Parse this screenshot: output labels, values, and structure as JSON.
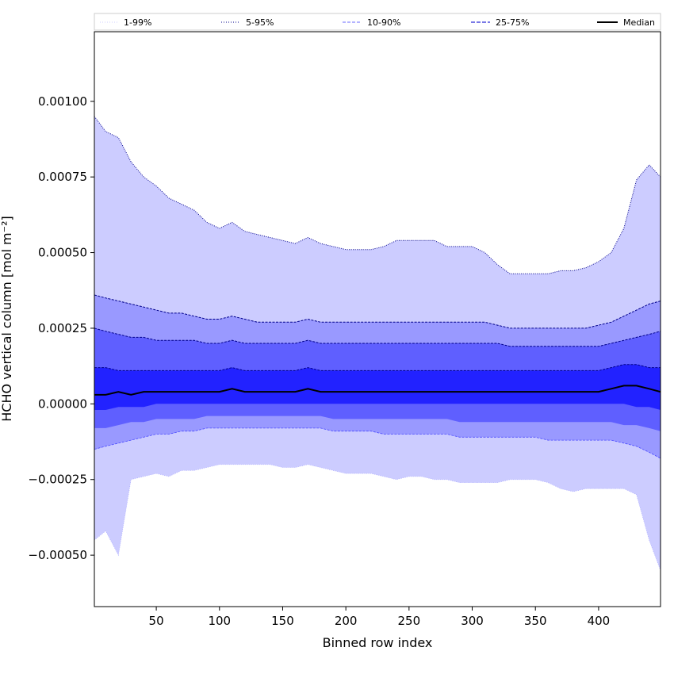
{
  "chart_data": {
    "type": "area",
    "title": "",
    "xlabel": "Binned row index",
    "ylabel": "HCHO vertical column [mol m⁻²]",
    "xlim": [
      1,
      449
    ],
    "ylim": [
      -0.00067,
      0.00123
    ],
    "x_ticks": [
      {
        "value": 50,
        "label": "50"
      },
      {
        "value": 100,
        "label": "100"
      },
      {
        "value": 150,
        "label": "150"
      },
      {
        "value": 200,
        "label": "200"
      },
      {
        "value": 250,
        "label": "250"
      },
      {
        "value": 300,
        "label": "300"
      },
      {
        "value": 350,
        "label": "350"
      },
      {
        "value": 400,
        "label": "400"
      }
    ],
    "y_ticks": [
      {
        "value": -0.0005,
        "label": "−0.00050"
      },
      {
        "value": -0.00025,
        "label": "−0.00025"
      },
      {
        "value": 0.0,
        "label": "0.00000"
      },
      {
        "value": 0.00025,
        "label": "0.00025"
      },
      {
        "value": 0.0005,
        "label": "0.00050"
      },
      {
        "value": 0.00075,
        "label": "0.00075"
      },
      {
        "value": 0.001,
        "label": "0.00100"
      }
    ],
    "legend": {
      "placement": "top",
      "entries": [
        {
          "label": "1-99%",
          "style": "dotted",
          "color": "#ccccff"
        },
        {
          "label": "5-95%",
          "style": "dotted",
          "color": "#00008b"
        },
        {
          "label": "10-90%",
          "style": "dashed",
          "color": "#6a6aff"
        },
        {
          "label": "25-75%",
          "style": "dashed",
          "color": "#2b2bd6"
        },
        {
          "label": "Median",
          "style": "solid",
          "color": "#000000"
        }
      ]
    },
    "band_colors": {
      "p1_99": "#ccccff",
      "p5_95": "#9999ff",
      "p10_90": "#5f5fff",
      "p25_75": "#2222ff",
      "median": "#000000"
    },
    "x": [
      1,
      10,
      20,
      30,
      40,
      50,
      60,
      70,
      80,
      90,
      100,
      110,
      120,
      130,
      140,
      150,
      160,
      170,
      180,
      190,
      200,
      210,
      220,
      230,
      240,
      250,
      260,
      270,
      280,
      290,
      300,
      310,
      320,
      330,
      340,
      350,
      360,
      370,
      380,
      390,
      400,
      410,
      420,
      430,
      440,
      449
    ],
    "series": [
      {
        "name": "1%",
        "values": [
          -0.00045,
          -0.00042,
          -0.0005,
          -0.00025,
          -0.00024,
          -0.00023,
          -0.00024,
          -0.00022,
          -0.00022,
          -0.00021,
          -0.0002,
          -0.0002,
          -0.0002,
          -0.0002,
          -0.0002,
          -0.00021,
          -0.00021,
          -0.0002,
          -0.00021,
          -0.00022,
          -0.00023,
          -0.00023,
          -0.00023,
          -0.00024,
          -0.00025,
          -0.00024,
          -0.00024,
          -0.00025,
          -0.00025,
          -0.00026,
          -0.00026,
          -0.00026,
          -0.00026,
          -0.00025,
          -0.00025,
          -0.00025,
          -0.00026,
          -0.00028,
          -0.00029,
          -0.00028,
          -0.00028,
          -0.00028,
          -0.00028,
          -0.0003,
          -0.00045,
          -0.00055
        ]
      },
      {
        "name": "5%",
        "values": [
          -0.00015,
          -0.00014,
          -0.00013,
          -0.00012,
          -0.00011,
          -0.0001,
          -0.0001,
          -9e-05,
          -9e-05,
          -8e-05,
          -8e-05,
          -8e-05,
          -8e-05,
          -8e-05,
          -8e-05,
          -8e-05,
          -8e-05,
          -8e-05,
          -8e-05,
          -9e-05,
          -9e-05,
          -9e-05,
          -9e-05,
          -0.0001,
          -0.0001,
          -0.0001,
          -0.0001,
          -0.0001,
          -0.0001,
          -0.00011,
          -0.00011,
          -0.00011,
          -0.00011,
          -0.00011,
          -0.00011,
          -0.00011,
          -0.00012,
          -0.00012,
          -0.00012,
          -0.00012,
          -0.00012,
          -0.00012,
          -0.00013,
          -0.00014,
          -0.00016,
          -0.00018
        ]
      },
      {
        "name": "10%",
        "values": [
          -8e-05,
          -8e-05,
          -7e-05,
          -6e-05,
          -6e-05,
          -5e-05,
          -5e-05,
          -5e-05,
          -5e-05,
          -4e-05,
          -4e-05,
          -4e-05,
          -4e-05,
          -4e-05,
          -4e-05,
          -4e-05,
          -4e-05,
          -4e-05,
          -4e-05,
          -5e-05,
          -5e-05,
          -5e-05,
          -5e-05,
          -5e-05,
          -5e-05,
          -5e-05,
          -5e-05,
          -5e-05,
          -5e-05,
          -6e-05,
          -6e-05,
          -6e-05,
          -6e-05,
          -6e-05,
          -6e-05,
          -6e-05,
          -6e-05,
          -6e-05,
          -6e-05,
          -6e-05,
          -6e-05,
          -6e-05,
          -7e-05,
          -7e-05,
          -8e-05,
          -9e-05
        ]
      },
      {
        "name": "25%",
        "values": [
          -2e-05,
          -2e-05,
          -1e-05,
          -1e-05,
          -1e-05,
          0.0,
          0.0,
          0.0,
          0.0,
          0.0,
          0.0,
          0.0,
          0.0,
          0.0,
          0.0,
          0.0,
          0.0,
          0.0,
          0.0,
          0.0,
          0.0,
          0.0,
          0.0,
          0.0,
          0.0,
          0.0,
          0.0,
          0.0,
          0.0,
          0.0,
          0.0,
          0.0,
          0.0,
          0.0,
          0.0,
          0.0,
          0.0,
          0.0,
          0.0,
          0.0,
          0.0,
          0.0,
          0.0,
          -1e-05,
          -1e-05,
          -2e-05
        ]
      },
      {
        "name": "Median",
        "values": [
          3e-05,
          3e-05,
          4e-05,
          3e-05,
          4e-05,
          4e-05,
          4e-05,
          4e-05,
          4e-05,
          4e-05,
          4e-05,
          5e-05,
          4e-05,
          4e-05,
          4e-05,
          4e-05,
          4e-05,
          5e-05,
          4e-05,
          4e-05,
          4e-05,
          4e-05,
          4e-05,
          4e-05,
          4e-05,
          4e-05,
          4e-05,
          4e-05,
          4e-05,
          4e-05,
          4e-05,
          4e-05,
          4e-05,
          4e-05,
          4e-05,
          4e-05,
          4e-05,
          4e-05,
          4e-05,
          4e-05,
          4e-05,
          5e-05,
          6e-05,
          6e-05,
          5e-05,
          4e-05
        ]
      },
      {
        "name": "75%",
        "values": [
          0.00012,
          0.00012,
          0.00011,
          0.00011,
          0.00011,
          0.00011,
          0.00011,
          0.00011,
          0.00011,
          0.00011,
          0.00011,
          0.00012,
          0.00011,
          0.00011,
          0.00011,
          0.00011,
          0.00011,
          0.00012,
          0.00011,
          0.00011,
          0.00011,
          0.00011,
          0.00011,
          0.00011,
          0.00011,
          0.00011,
          0.00011,
          0.00011,
          0.00011,
          0.00011,
          0.00011,
          0.00011,
          0.00011,
          0.00011,
          0.00011,
          0.00011,
          0.00011,
          0.00011,
          0.00011,
          0.00011,
          0.00011,
          0.00012,
          0.00013,
          0.00013,
          0.00012,
          0.00012
        ]
      },
      {
        "name": "90%",
        "values": [
          0.00025,
          0.00024,
          0.00023,
          0.00022,
          0.00022,
          0.00021,
          0.00021,
          0.00021,
          0.00021,
          0.0002,
          0.0002,
          0.00021,
          0.0002,
          0.0002,
          0.0002,
          0.0002,
          0.0002,
          0.00021,
          0.0002,
          0.0002,
          0.0002,
          0.0002,
          0.0002,
          0.0002,
          0.0002,
          0.0002,
          0.0002,
          0.0002,
          0.0002,
          0.0002,
          0.0002,
          0.0002,
          0.0002,
          0.00019,
          0.00019,
          0.00019,
          0.00019,
          0.00019,
          0.00019,
          0.00019,
          0.00019,
          0.0002,
          0.00021,
          0.00022,
          0.00023,
          0.00024
        ]
      },
      {
        "name": "95%",
        "values": [
          0.00036,
          0.00035,
          0.00034,
          0.00033,
          0.00032,
          0.00031,
          0.0003,
          0.0003,
          0.00029,
          0.00028,
          0.00028,
          0.00029,
          0.00028,
          0.00027,
          0.00027,
          0.00027,
          0.00027,
          0.00028,
          0.00027,
          0.00027,
          0.00027,
          0.00027,
          0.00027,
          0.00027,
          0.00027,
          0.00027,
          0.00027,
          0.00027,
          0.00027,
          0.00027,
          0.00027,
          0.00027,
          0.00026,
          0.00025,
          0.00025,
          0.00025,
          0.00025,
          0.00025,
          0.00025,
          0.00025,
          0.00026,
          0.00027,
          0.00029,
          0.00031,
          0.00033,
          0.00034
        ]
      },
      {
        "name": "99%",
        "values": [
          0.00095,
          0.0009,
          0.00088,
          0.0008,
          0.00075,
          0.00072,
          0.00068,
          0.00066,
          0.00064,
          0.0006,
          0.00058,
          0.0006,
          0.00057,
          0.00056,
          0.00055,
          0.00054,
          0.00053,
          0.00055,
          0.00053,
          0.00052,
          0.00051,
          0.00051,
          0.00051,
          0.00052,
          0.00054,
          0.00054,
          0.00054,
          0.00054,
          0.00052,
          0.00052,
          0.00052,
          0.0005,
          0.00046,
          0.00043,
          0.00043,
          0.00043,
          0.00043,
          0.00044,
          0.00044,
          0.00045,
          0.00047,
          0.0005,
          0.00058,
          0.00074,
          0.00079,
          0.00075
        ]
      }
    ]
  }
}
